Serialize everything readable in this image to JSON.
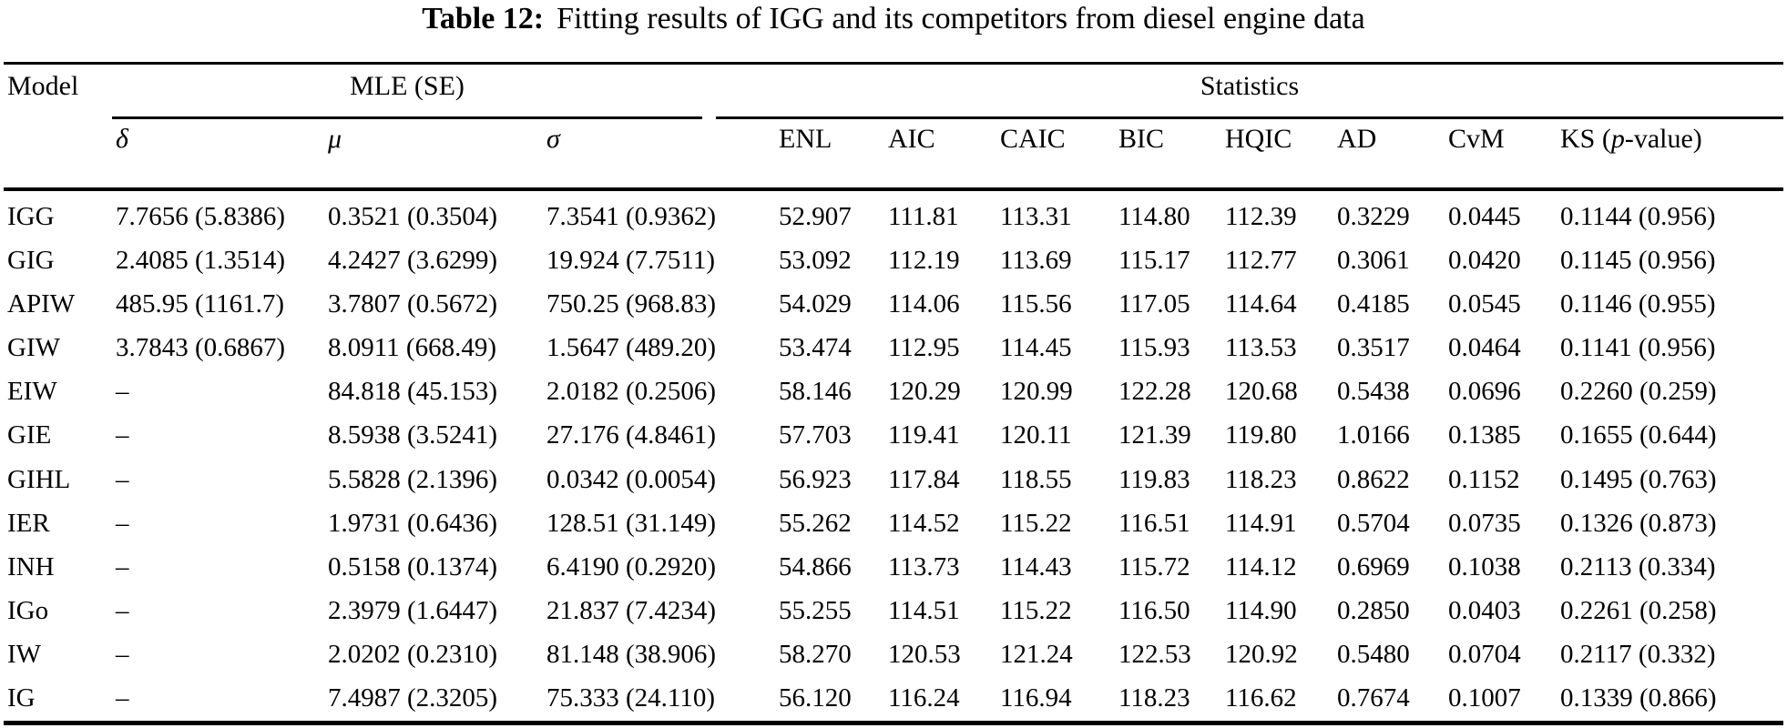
{
  "title": {
    "label": "Table 12:",
    "text": "Fitting results of IGG and its competitors from diesel engine data"
  },
  "table": {
    "groups": {
      "model": "Model",
      "mle": "MLE (SE)",
      "statistics": "Statistics"
    },
    "columns": {
      "delta": "δ",
      "mu": "μ",
      "sigma": "σ",
      "enl": "ENL",
      "aic": "AIC",
      "caic": "CAIC",
      "bic": "BIC",
      "hqic": "HQIC",
      "ad": "AD",
      "cvm": "CvM",
      "ks_prefix": "KS (",
      "ks_p": "p",
      "ks_suffix": "-value)"
    },
    "rows": [
      {
        "model": "IGG",
        "delta": "7.7656 (5.8386)",
        "mu": "0.3521 (0.3504)",
        "sigma": "7.3541 (0.9362)",
        "enl": "52.907",
        "aic": "111.81",
        "caic": "113.31",
        "bic": "114.80",
        "hqic": "112.39",
        "ad": "0.3229",
        "cvm": "0.0445",
        "ks": "0.1144 (0.956)"
      },
      {
        "model": "GIG",
        "delta": "2.4085 (1.3514)",
        "mu": "4.2427 (3.6299)",
        "sigma": "19.924 (7.7511)",
        "enl": "53.092",
        "aic": "112.19",
        "caic": "113.69",
        "bic": "115.17",
        "hqic": "112.77",
        "ad": "0.3061",
        "cvm": "0.0420",
        "ks": "0.1145 (0.956)"
      },
      {
        "model": "APIW",
        "delta": "485.95 (1161.7)",
        "mu": "3.7807 (0.5672)",
        "sigma": "750.25 (968.83)",
        "enl": "54.029",
        "aic": "114.06",
        "caic": "115.56",
        "bic": "117.05",
        "hqic": "114.64",
        "ad": "0.4185",
        "cvm": "0.0545",
        "ks": "0.1146 (0.955)"
      },
      {
        "model": "GIW",
        "delta": "3.7843 (0.6867)",
        "mu": "8.0911 (668.49)",
        "sigma": "1.5647 (489.20)",
        "enl": "53.474",
        "aic": "112.95",
        "caic": "114.45",
        "bic": "115.93",
        "hqic": "113.53",
        "ad": "0.3517",
        "cvm": "0.0464",
        "ks": "0.1141 (0.956)"
      },
      {
        "model": "EIW",
        "delta": "–",
        "mu": "84.818 (45.153)",
        "sigma": "2.0182 (0.2506)",
        "enl": "58.146",
        "aic": "120.29",
        "caic": "120.99",
        "bic": "122.28",
        "hqic": "120.68",
        "ad": "0.5438",
        "cvm": "0.0696",
        "ks": "0.2260 (0.259)"
      },
      {
        "model": "GIE",
        "delta": "–",
        "mu": "8.5938 (3.5241)",
        "sigma": "27.176 (4.8461)",
        "enl": "57.703",
        "aic": "119.41",
        "caic": "120.11",
        "bic": "121.39",
        "hqic": "119.80",
        "ad": "1.0166",
        "cvm": "0.1385",
        "ks": "0.1655 (0.644)"
      },
      {
        "model": "GIHL",
        "delta": "–",
        "mu": "5.5828 (2.1396)",
        "sigma": "0.0342 (0.0054)",
        "enl": "56.923",
        "aic": "117.84",
        "caic": "118.55",
        "bic": "119.83",
        "hqic": "118.23",
        "ad": "0.8622",
        "cvm": "0.1152",
        "ks": "0.1495 (0.763)"
      },
      {
        "model": "IER",
        "delta": "–",
        "mu": "1.9731 (0.6436)",
        "sigma": "128.51 (31.149)",
        "enl": "55.262",
        "aic": "114.52",
        "caic": "115.22",
        "bic": "116.51",
        "hqic": "114.91",
        "ad": "0.5704",
        "cvm": "0.0735",
        "ks": "0.1326 (0.873)"
      },
      {
        "model": "INH",
        "delta": "–",
        "mu": "0.5158 (0.1374)",
        "sigma": "6.4190 (0.2920)",
        "enl": "54.866",
        "aic": "113.73",
        "caic": "114.43",
        "bic": "115.72",
        "hqic": "114.12",
        "ad": "0.6969",
        "cvm": "0.1038",
        "ks": "0.2113 (0.334)"
      },
      {
        "model": "IGo",
        "delta": "–",
        "mu": "2.3979 (1.6447)",
        "sigma": "21.837 (7.4234)",
        "enl": "55.255",
        "aic": "114.51",
        "caic": "115.22",
        "bic": "116.50",
        "hqic": "114.90",
        "ad": "0.2850",
        "cvm": "0.0403",
        "ks": "0.2261 (0.258)"
      },
      {
        "model": "IW",
        "delta": "–",
        "mu": "2.0202 (0.2310)",
        "sigma": "81.148 (38.906)",
        "enl": "58.270",
        "aic": "120.53",
        "caic": "121.24",
        "bic": "122.53",
        "hqic": "120.92",
        "ad": "0.5480",
        "cvm": "0.0704",
        "ks": "0.2117 (0.332)"
      },
      {
        "model": "IG",
        "delta": "–",
        "mu": "7.4987 (2.3205)",
        "sigma": "75.333 (24.110)",
        "enl": "56.120",
        "aic": "116.24",
        "caic": "116.94",
        "bic": "118.23",
        "hqic": "116.62",
        "ad": "0.7674",
        "cvm": "0.1007",
        "ks": "0.1339 (0.866)"
      }
    ]
  }
}
